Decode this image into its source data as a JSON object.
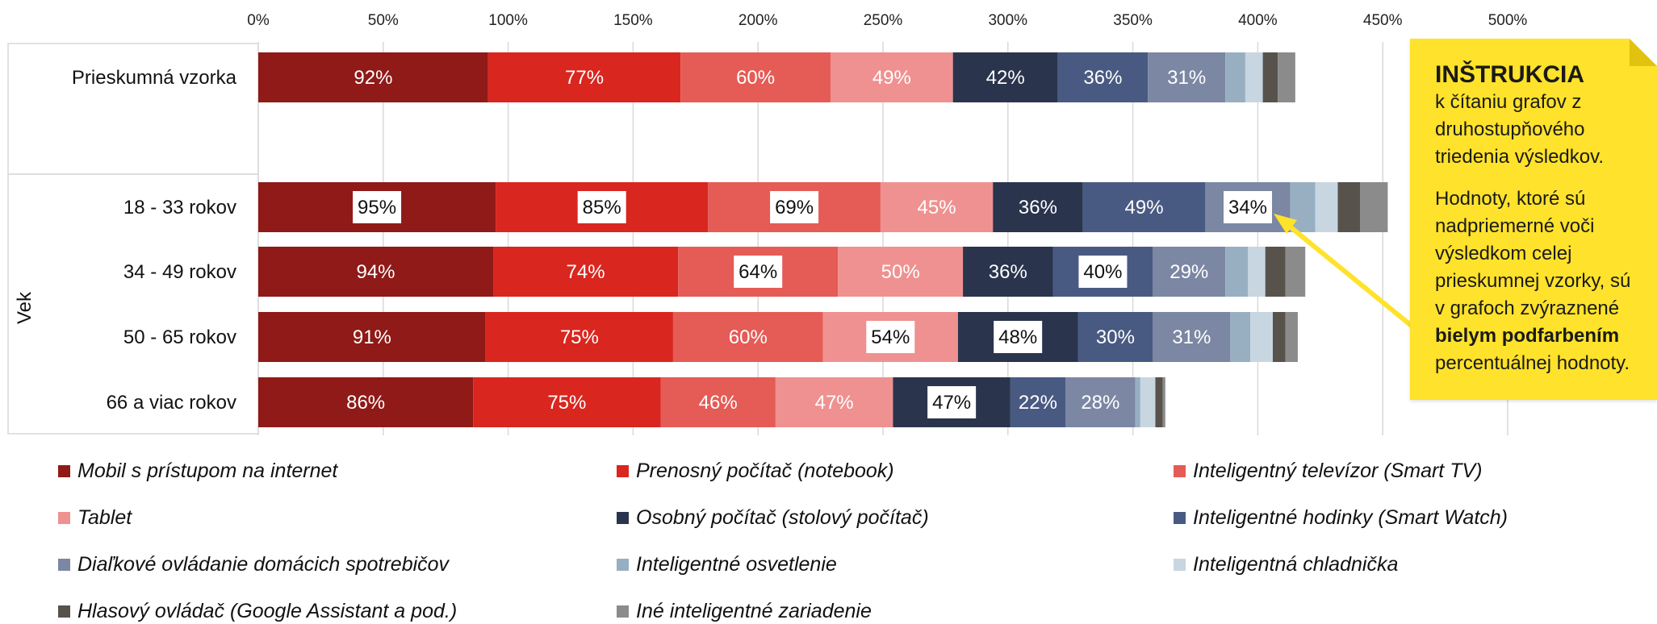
{
  "chart_data": {
    "type": "bar",
    "orientation": "horizontal",
    "stacked": true,
    "xlim": [
      0,
      500
    ],
    "x_ticks": [
      "0%",
      "50%",
      "100%",
      "150%",
      "200%",
      "250%",
      "300%",
      "350%",
      "400%",
      "450%",
      "500%"
    ],
    "x_tick_values": [
      0,
      50,
      100,
      150,
      200,
      250,
      300,
      350,
      400,
      450,
      500
    ],
    "grid": true,
    "legend_position": "bottom",
    "group_label": "Vek",
    "categories": [
      "Prieskumná vzorka",
      "18 - 33 rokov",
      "34 - 49 rokov",
      "50 - 65 rokov",
      "66 a viac rokov"
    ],
    "series": [
      {
        "name": "Mobil s prístupom na internet",
        "color": "#8f1a17",
        "values": [
          92,
          95,
          94,
          91,
          86
        ],
        "labels": [
          "92%",
          "95%",
          "94%",
          "91%",
          "86%"
        ],
        "highlight": [
          false,
          true,
          false,
          false,
          false
        ]
      },
      {
        "name": "Prenosný počítač (notebook)",
        "color": "#d9261f",
        "values": [
          77,
          85,
          74,
          75,
          75
        ],
        "labels": [
          "77%",
          "85%",
          "74%",
          "75%",
          "75%"
        ],
        "highlight": [
          false,
          true,
          false,
          false,
          false
        ]
      },
      {
        "name": "Inteligentný televízor (Smart TV)",
        "color": "#e55b55",
        "values": [
          60,
          69,
          64,
          60,
          46
        ],
        "labels": [
          "60%",
          "69%",
          "64%",
          "60%",
          "46%"
        ],
        "highlight": [
          false,
          true,
          true,
          false,
          false
        ]
      },
      {
        "name": "Tablet",
        "color": "#ef9190",
        "values": [
          49,
          45,
          50,
          54,
          47
        ],
        "labels": [
          "49%",
          "45%",
          "50%",
          "54%",
          "47%"
        ],
        "highlight": [
          false,
          false,
          false,
          true,
          false
        ]
      },
      {
        "name": "Osobný počítač (stolový počítač)",
        "color": "#2a344d",
        "values": [
          42,
          36,
          36,
          48,
          47
        ],
        "labels": [
          "42%",
          "36%",
          "36%",
          "48%",
          "47%"
        ],
        "highlight": [
          false,
          false,
          false,
          true,
          true
        ]
      },
      {
        "name": "Inteligentné hodinky (Smart Watch)",
        "color": "#495a82",
        "values": [
          36,
          49,
          40,
          30,
          22
        ],
        "labels": [
          "36%",
          "49%",
          "40%",
          "30%",
          "22%"
        ],
        "highlight": [
          false,
          false,
          true,
          false,
          false
        ]
      },
      {
        "name": "Diaľkové ovládanie domácich spotrebičov",
        "color": "#7b87a3",
        "values": [
          31,
          34,
          29,
          31,
          28
        ],
        "labels": [
          "31%",
          "34%",
          "29%",
          "31%",
          "28%"
        ],
        "highlight": [
          false,
          true,
          false,
          false,
          false
        ]
      },
      {
        "name": "Inteligentné osvetlenie",
        "color": "#98afc2",
        "values": [
          8,
          10,
          9,
          8,
          2
        ],
        "labels": [
          "",
          "",
          "",
          "",
          ""
        ],
        "highlight": [
          false,
          false,
          false,
          false,
          false
        ]
      },
      {
        "name": "Inteligentná chladnička",
        "color": "#c8d6e2",
        "values": [
          7,
          9,
          7,
          9,
          6
        ],
        "labels": [
          "",
          "",
          "",
          "",
          ""
        ],
        "highlight": [
          false,
          false,
          false,
          false,
          false
        ]
      },
      {
        "name": "Hlasový ovládač (Google Assistant a pod.)",
        "color": "#58524d",
        "values": [
          6,
          9,
          8,
          5,
          3
        ],
        "labels": [
          "",
          "",
          "",
          "",
          ""
        ],
        "highlight": [
          false,
          false,
          false,
          false,
          false
        ]
      },
      {
        "name": "Iné inteligentné zariadenie",
        "color": "#8b8b8b",
        "values": [
          7,
          11,
          8,
          5,
          1
        ],
        "labels": [
          "",
          "",
          "",
          "",
          ""
        ],
        "highlight": [
          false,
          false,
          false,
          false,
          false
        ]
      }
    ]
  },
  "note": {
    "title": "INŠTRUKCIA",
    "paragraph1": "k čítaniu grafov z druhostupňového triedenia výsledkov.",
    "paragraph2_before": "Hodnoty, ktoré sú nadpriemerné voči výsledkom celej prieskumnej vzorky, sú v grafoch zvýraznené",
    "paragraph2_bold": "bielym podfarbením",
    "paragraph2_after": "percentuálnej hodnoty.",
    "color": "#ffe22b"
  }
}
